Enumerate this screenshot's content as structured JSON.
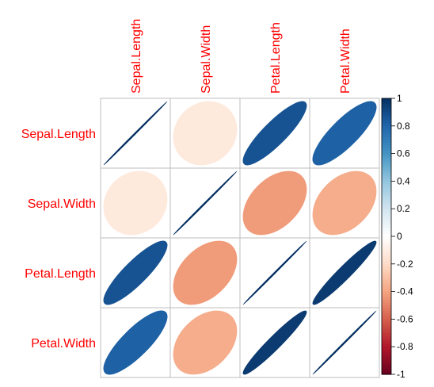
{
  "chart_data": {
    "type": "heatmap",
    "title": "",
    "variables": [
      "Sepal.Length",
      "Sepal.Width",
      "Petal.Length",
      "Petal.Width"
    ],
    "matrix": [
      [
        1.0,
        -0.12,
        0.87,
        0.82
      ],
      [
        -0.12,
        1.0,
        -0.43,
        -0.37
      ],
      [
        0.87,
        -0.43,
        1.0,
        0.96
      ],
      [
        0.82,
        -0.37,
        0.96,
        1.0
      ]
    ],
    "colorbar": {
      "range": [
        -1,
        1
      ],
      "ticks": [
        1,
        0.8,
        0.6,
        0.4,
        0.2,
        0,
        -0.2,
        -0.4,
        -0.6,
        -0.8,
        -1
      ],
      "tick_labels": [
        "1",
        "0.8",
        "0.6",
        "0.4",
        "0.2",
        "0",
        "-0.2",
        "-0.4",
        "-0.6",
        "-0.8",
        "-1"
      ]
    },
    "label_color": "#ff0000",
    "grid_color": "#bebebe",
    "palette": [
      "#67001f",
      "#b2182b",
      "#d6604d",
      "#f4a582",
      "#fddbc7",
      "#ffffff",
      "#d1e5f0",
      "#92c5de",
      "#4393c3",
      "#2166ac",
      "#053061"
    ]
  }
}
